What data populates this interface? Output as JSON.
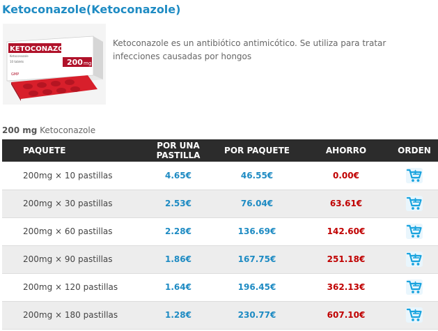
{
  "product": {
    "title": "Ketoconazole(Ketoconazole)",
    "description": "Ketoconazole es un antibiótico antimicótico. Se utiliza para tratar infecciones causadas por hongos",
    "image": {
      "brand": "KETOCONAZOL",
      "sub": "Ketoconazole",
      "tablets": "10 tablets",
      "dose": "200",
      "dose_unit": "mg",
      "maker": "GMP"
    }
  },
  "dose_line": {
    "strength": "200 mg",
    "name": "Ketoconazole"
  },
  "table": {
    "headers": {
      "package": "PAQUETE",
      "per_pill_1": "POR UNA",
      "per_pill_2": "PASTILLA",
      "per_pack": "POR PAQUETE",
      "savings": "AHORRO",
      "order": "ORDEN"
    },
    "rows": [
      {
        "package": "200mg × 10 pastillas",
        "per_pill": "4.65€",
        "per_pack": "46.55€",
        "savings": "0.00€"
      },
      {
        "package": "200mg × 30 pastillas",
        "per_pill": "2.53€",
        "per_pack": "76.04€",
        "savings": "63.61€"
      },
      {
        "package": "200mg × 60 pastillas",
        "per_pill": "2.28€",
        "per_pack": "136.69€",
        "savings": "142.60€"
      },
      {
        "package": "200mg × 90 pastillas",
        "per_pill": "1.86€",
        "per_pack": "167.75€",
        "savings": "251.18€"
      },
      {
        "package": "200mg × 120 pastillas",
        "per_pill": "1.64€",
        "per_pack": "196.45€",
        "savings": "362.13€"
      },
      {
        "package": "200mg × 180 pastillas",
        "per_pill": "1.28€",
        "per_pack": "230.77€",
        "savings": "607.10€"
      }
    ],
    "order_icon": "cart-icon"
  },
  "colors": {
    "accent": "#1e8bc3",
    "savings": "#c00000",
    "header_bg": "#2c2c2c"
  }
}
